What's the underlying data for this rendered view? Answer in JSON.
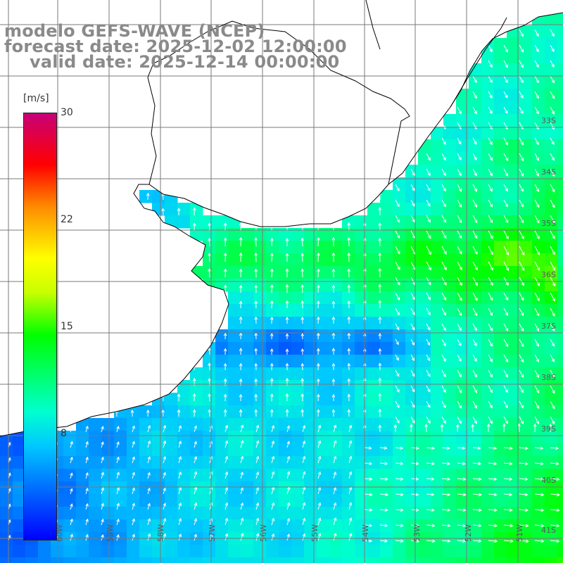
{
  "title": {
    "line1": "modelo GEFS-WAVE (NCEP)",
    "line2": "forecast date: 2025-12-02 12:00:00",
    "line3": "valid date: 2025-12-14 00:00:00"
  },
  "colorbar": {
    "unit": "[m/s]",
    "ticks": [
      "30",
      "22",
      "15",
      "8"
    ],
    "tick_values": [
      30,
      22,
      15,
      8
    ],
    "min": 0,
    "max": 30,
    "colors": [
      "#0000ff",
      "#00c8ff",
      "#00ffd0",
      "#00ff00",
      "#c8ff00",
      "#ffff00",
      "#ff8c00",
      "#ff0000",
      "#c80078"
    ]
  },
  "lat_labels": [
    "33S",
    "34S",
    "35S",
    "36S",
    "37S",
    "38S",
    "39S",
    "40S",
    "41S"
  ],
  "lon_labels": [
    "60W",
    "59W",
    "58W",
    "57W",
    "56W",
    "55W",
    "54W",
    "53W",
    "52W",
    "51W"
  ],
  "field": {
    "variable": "wind speed",
    "land_color": "#ffffff",
    "coast_color": "#000000",
    "arrow_color": "#ffffff",
    "grid_color": "#7a7a7a"
  }
}
